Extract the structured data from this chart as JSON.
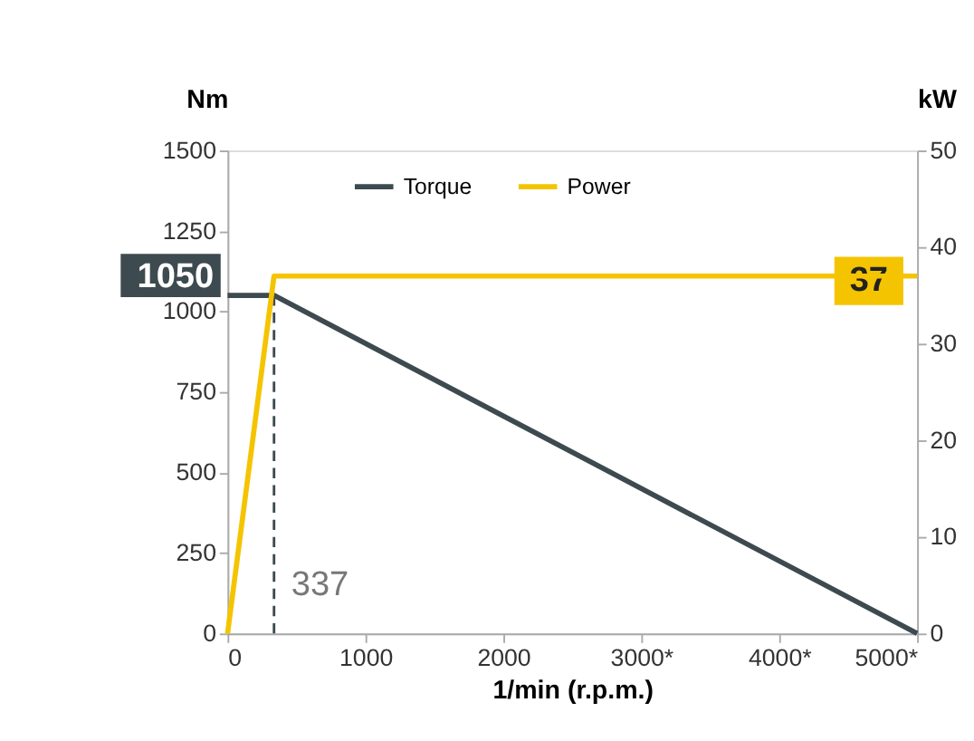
{
  "chart_data": {
    "type": "line",
    "xlabel": "1/min (r.p.m.)",
    "ylabel": "Nm",
    "y2label": "kW",
    "x": [
      0,
      337,
      5000
    ],
    "series": [
      {
        "name": "Torque",
        "color": "#3d4a4f",
        "values": [
          1050,
          1050,
          0
        ]
      },
      {
        "name": "Power",
        "color": "#f5c400",
        "values": [
          0,
          37,
          37
        ],
        "axis": "y2"
      }
    ],
    "xlim": [
      0,
      5000
    ],
    "xticks": [
      0,
      1000,
      2000,
      {
        "value": 3000,
        "label": "3000*"
      },
      {
        "value": 4000,
        "label": "4000*"
      },
      {
        "value": 5000,
        "label": "5000*"
      }
    ],
    "ylim": [
      0,
      1500
    ],
    "yticks": [
      0,
      250,
      500,
      750,
      1000,
      1250,
      1500
    ],
    "y2lim": [
      0,
      50
    ],
    "y2ticks": [
      0,
      10,
      20,
      30,
      40,
      50
    ],
    "ref_lines": [
      {
        "axis": "x",
        "value": 337,
        "label": "337",
        "color": "#3d4a4f",
        "line_style": "dashed"
      }
    ],
    "annotations": [
      {
        "text": "1050",
        "x": 0,
        "y": 1050
      },
      "37"
    ],
    "grid": false,
    "legend": "top",
    "line_style": "solid",
    "marker": "none"
  }
}
